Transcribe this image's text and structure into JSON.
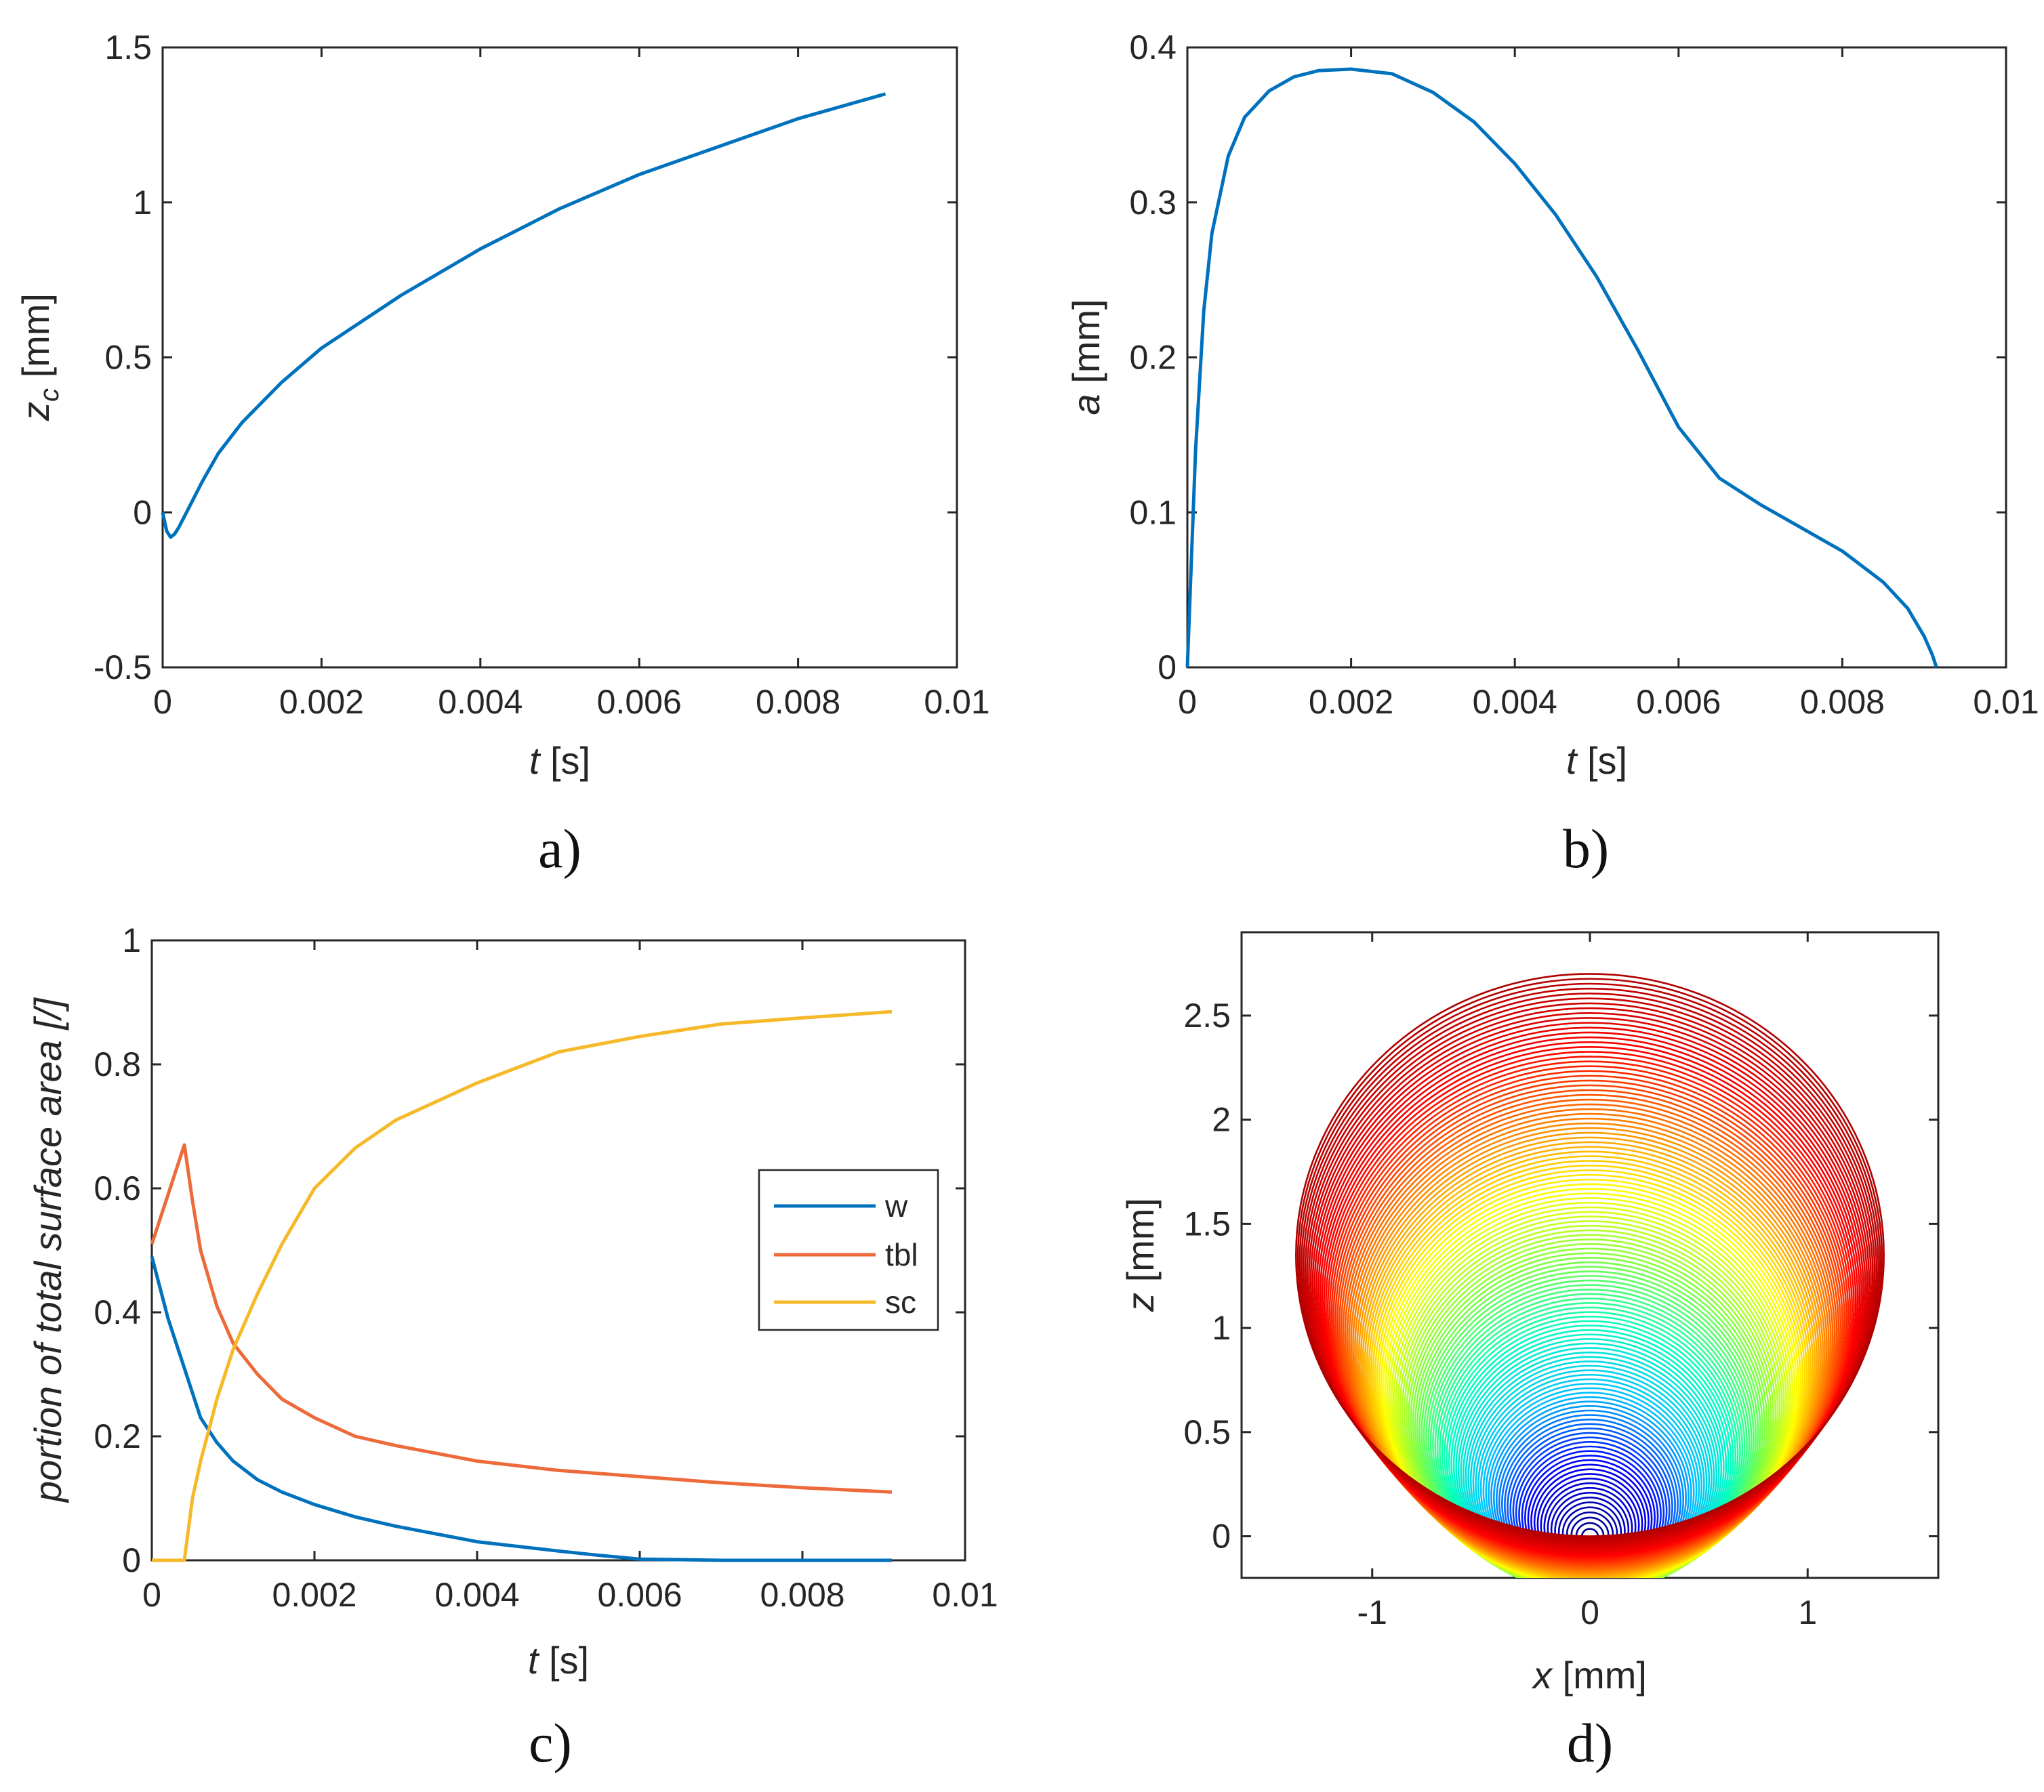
{
  "colors": {
    "blue": "#0072BD",
    "orange": "#ED6A3A",
    "yellow": "#F5B92A",
    "axis": "#262626"
  },
  "chart_data": [
    {
      "type": "line",
      "panel": "a)",
      "caption": "a)",
      "xlabel": {
        "var": "t",
        "unit": " [s]"
      },
      "ylabel": {
        "var": "z",
        "sub": "c",
        "unit": " [mm]"
      },
      "xlim": [
        0,
        0.01
      ],
      "ylim": [
        -0.5,
        1.5
      ],
      "xticks": [
        0,
        0.002,
        0.004,
        0.006,
        0.008,
        0.01
      ],
      "xticklabels": [
        "0",
        "0.002",
        "0.004",
        "0.006",
        "0.008",
        "0.01"
      ],
      "yticks": [
        -0.5,
        0,
        0.5,
        1,
        1.5
      ],
      "yticklabels": [
        "-0.5",
        "0",
        "0.5",
        "1",
        "1.5"
      ],
      "series": [
        {
          "name": "z_c",
          "color": "#0072BD",
          "x": [
            0,
            5e-05,
            0.0001,
            0.00015,
            0.0002,
            0.0003,
            0.0004,
            0.0005,
            0.0007,
            0.001,
            0.0015,
            0.002,
            0.003,
            0.004,
            0.005,
            0.006,
            0.007,
            0.008,
            0.0091
          ],
          "y": [
            0,
            -0.06,
            -0.08,
            -0.07,
            -0.05,
            0.0,
            0.05,
            0.1,
            0.19,
            0.29,
            0.42,
            0.53,
            0.7,
            0.85,
            0.98,
            1.09,
            1.18,
            1.27,
            1.35
          ]
        }
      ]
    },
    {
      "type": "line",
      "panel": "b)",
      "caption": "b)",
      "xlabel": {
        "var": "t",
        "unit": " [s]"
      },
      "ylabel": {
        "var": "a",
        "unit": " [mm]"
      },
      "xlim": [
        0,
        0.01
      ],
      "ylim": [
        0,
        0.4
      ],
      "xticks": [
        0,
        0.002,
        0.004,
        0.006,
        0.008,
        0.01
      ],
      "xticklabels": [
        "0",
        "0.002",
        "0.004",
        "0.006",
        "0.008",
        "0.01"
      ],
      "yticks": [
        0,
        0.1,
        0.2,
        0.3,
        0.4
      ],
      "yticklabels": [
        "0",
        "0.1",
        "0.2",
        "0.3",
        "0.4"
      ],
      "series": [
        {
          "name": "a",
          "color": "#0072BD",
          "x": [
            0,
            5e-05,
            0.0001,
            0.0002,
            0.0003,
            0.0005,
            0.0007,
            0.001,
            0.0013,
            0.0016,
            0.002,
            0.0025,
            0.003,
            0.0035,
            0.004,
            0.0045,
            0.005,
            0.0055,
            0.006,
            0.0065,
            0.007,
            0.0075,
            0.008,
            0.0085,
            0.0088,
            0.009,
            0.0091,
            0.00915
          ],
          "y": [
            0,
            0.07,
            0.14,
            0.23,
            0.28,
            0.33,
            0.355,
            0.372,
            0.381,
            0.385,
            0.386,
            0.383,
            0.371,
            0.352,
            0.325,
            0.292,
            0.252,
            0.205,
            0.155,
            0.122,
            0.105,
            0.09,
            0.075,
            0.055,
            0.038,
            0.02,
            0.008,
            0
          ]
        }
      ]
    },
    {
      "type": "line",
      "panel": "c)",
      "caption": "c)",
      "xlabel": {
        "var": "t",
        "unit": " [s]"
      },
      "ylabel": {
        "text": "portion of total surface area [/]"
      },
      "xlim": [
        0,
        0.01
      ],
      "ylim": [
        0,
        1
      ],
      "xticks": [
        0,
        0.002,
        0.004,
        0.006,
        0.008,
        0.01
      ],
      "xticklabels": [
        "0",
        "0.002",
        "0.004",
        "0.006",
        "0.008",
        "0.01"
      ],
      "yticks": [
        0,
        0.2,
        0.4,
        0.6,
        0.8,
        1
      ],
      "yticklabels": [
        "0",
        "0.2",
        "0.4",
        "0.6",
        "0.8",
        "1"
      ],
      "legend": {
        "position": "east",
        "entries": [
          "w",
          "tbl",
          "sc"
        ]
      },
      "series": [
        {
          "name": "w",
          "color": "#0072BD",
          "x": [
            0,
            0.0001,
            0.0002,
            0.0003,
            0.0004,
            0.0006,
            0.0008,
            0.001,
            0.0013,
            0.0016,
            0.002,
            0.0025,
            0.003,
            0.004,
            0.005,
            0.0055,
            0.006,
            0.007,
            0.008,
            0.0091
          ],
          "y": [
            0.49,
            0.44,
            0.39,
            0.35,
            0.31,
            0.23,
            0.19,
            0.16,
            0.13,
            0.11,
            0.09,
            0.07,
            0.055,
            0.03,
            0.015,
            0.008,
            0.002,
            0.0,
            0.0,
            0.0
          ]
        },
        {
          "name": "tbl",
          "color": "#ED6A3A",
          "x": [
            0,
            0.0001,
            0.0002,
            0.0003,
            0.0004,
            0.0005,
            0.0006,
            0.0008,
            0.001,
            0.0013,
            0.0016,
            0.002,
            0.0025,
            0.003,
            0.004,
            0.005,
            0.006,
            0.007,
            0.008,
            0.0091
          ],
          "y": [
            0.51,
            0.55,
            0.59,
            0.63,
            0.67,
            0.58,
            0.5,
            0.41,
            0.35,
            0.3,
            0.26,
            0.23,
            0.2,
            0.185,
            0.16,
            0.145,
            0.135,
            0.125,
            0.117,
            0.11
          ]
        },
        {
          "name": "sc",
          "color": "#F5B92A",
          "x": [
            0,
            0.0004,
            0.0005,
            0.0006,
            0.0008,
            0.001,
            0.0013,
            0.0016,
            0.002,
            0.0025,
            0.003,
            0.004,
            0.005,
            0.006,
            0.007,
            0.008,
            0.0091
          ],
          "y": [
            0,
            0,
            0.1,
            0.16,
            0.26,
            0.34,
            0.43,
            0.51,
            0.6,
            0.665,
            0.71,
            0.77,
            0.82,
            0.845,
            0.865,
            0.875,
            0.885
          ]
        }
      ]
    },
    {
      "type": "contour",
      "panel": "d)",
      "caption": "d)",
      "xlabel": {
        "var": "x",
        "unit": " [mm]"
      },
      "ylabel": {
        "var": "z",
        "unit": " [mm]"
      },
      "xlim": [
        -1.6,
        1.6
      ],
      "ylim": [
        -0.2,
        2.9
      ],
      "xticks": [
        -1,
        0,
        1
      ],
      "xticklabels": [
        "-1",
        "0",
        "1"
      ],
      "yticks": [
        0,
        0.5,
        1,
        1.5,
        2,
        2.5
      ],
      "yticklabels": [
        "0",
        "0.5",
        "1",
        "1.5",
        "2",
        "2.5"
      ],
      "description_series": "bubble outlines over time, from small (blue) to large (red)",
      "final_radius": 1.35,
      "final_center_z": 1.35,
      "n_outlines": 120,
      "colormap": [
        "#00008B",
        "#0000FF",
        "#00BFFF",
        "#00FFC0",
        "#80FF40",
        "#FFFF00",
        "#FF8000",
        "#FF0000",
        "#B00000"
      ]
    }
  ]
}
